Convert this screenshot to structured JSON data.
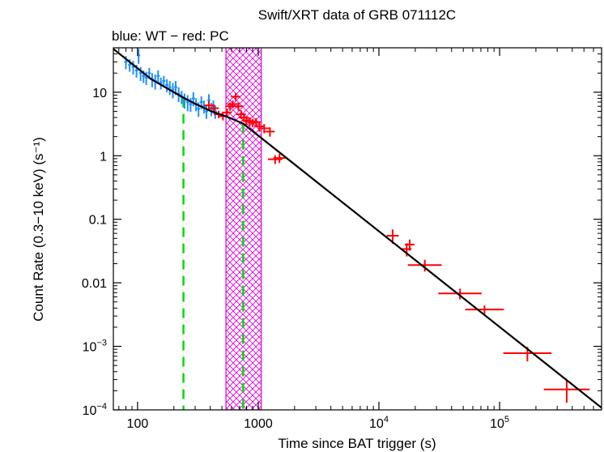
{
  "chart_data": {
    "type": "scatter",
    "title": "Swift/XRT data of GRB 071112C",
    "subtitle": "blue: WT − red: PC",
    "xlabel": "Time since BAT trigger (s)",
    "ylabel": "Count Rate (0.3−10 keV) (s⁻¹)",
    "xscale": "log",
    "yscale": "log",
    "xlim": [
      63,
      700000
    ],
    "ylim": [
      0.0001,
      50
    ],
    "x_ticks": [
      {
        "value": 100,
        "label": "100"
      },
      {
        "value": 1000,
        "label": "1000"
      },
      {
        "value": 10000,
        "base": "10",
        "exp": "4"
      },
      {
        "value": 100000,
        "base": "10",
        "exp": "5"
      }
    ],
    "y_ticks": [
      {
        "value": 0.0001,
        "base": "10",
        "exp": "−4"
      },
      {
        "value": 0.001,
        "base": "10",
        "exp": "−3"
      },
      {
        "value": 0.01,
        "label": "0.01"
      },
      {
        "value": 0.1,
        "label": "0.1"
      },
      {
        "value": 1,
        "label": "1"
      },
      {
        "value": 10,
        "label": "10"
      }
    ],
    "colors": {
      "wt": "#1f8fff",
      "pc": "#ff0000",
      "model": "#000000",
      "breaks": "#00dd00",
      "flare": "#dd00dd"
    },
    "series": [
      {
        "name": "WT",
        "color": "#1f8fff",
        "points": [
          [
            80,
            30,
            7
          ],
          [
            86,
            27,
            6
          ],
          [
            92,
            25,
            6
          ],
          [
            98,
            22,
            5
          ],
          [
            102,
            38,
            10
          ],
          [
            106,
            20,
            5
          ],
          [
            112,
            18,
            4
          ],
          [
            118,
            17,
            4
          ],
          [
            125,
            20,
            4
          ],
          [
            132,
            16,
            4
          ],
          [
            140,
            15,
            4
          ],
          [
            148,
            18,
            4
          ],
          [
            156,
            14,
            3
          ],
          [
            165,
            15,
            3
          ],
          [
            175,
            13,
            3
          ],
          [
            185,
            12,
            3
          ],
          [
            196,
            11,
            3
          ],
          [
            207,
            12,
            3
          ],
          [
            219,
            9.5,
            2.5
          ],
          [
            232,
            8.5,
            2
          ],
          [
            245,
            7.5,
            2
          ],
          [
            260,
            7,
            2
          ],
          [
            275,
            6.5,
            1.6
          ],
          [
            290,
            8,
            2
          ],
          [
            305,
            6.5,
            1.5
          ],
          [
            320,
            5.5,
            1.4
          ],
          [
            338,
            7,
            1.6
          ],
          [
            355,
            6,
            1.4
          ],
          [
            372,
            5,
            1.2
          ],
          [
            390,
            7.5,
            1.8
          ],
          [
            408,
            5.5,
            1.3
          ],
          [
            425,
            6,
            1.4
          ],
          [
            440,
            5,
            1.2
          ]
        ]
      },
      {
        "name": "PC",
        "color": "#ff0000",
        "points": [
          [
            390,
            6.2,
            1.0,
            0.04
          ],
          [
            430,
            5.6,
            0.8,
            0.04
          ],
          [
            470,
            4.5,
            0.6,
            0.04
          ],
          [
            510,
            4.2,
            0.6,
            0.04
          ],
          [
            550,
            4.8,
            0.7,
            0.04
          ],
          [
            585,
            6.0,
            0.9,
            0.04
          ],
          [
            615,
            6.5,
            0.9,
            0.04
          ],
          [
            650,
            8.5,
            1.2,
            0.04
          ],
          [
            685,
            6.0,
            0.9,
            0.04
          ],
          [
            720,
            4.5,
            0.7,
            0.04
          ],
          [
            760,
            4.0,
            0.6,
            0.04
          ],
          [
            800,
            3.6,
            0.55,
            0.04
          ],
          [
            850,
            3.5,
            0.55,
            0.04
          ],
          [
            900,
            3.3,
            0.5,
            0.04
          ],
          [
            960,
            3.4,
            0.5,
            0.04
          ],
          [
            1020,
            2.9,
            0.5,
            0.04
          ],
          [
            1120,
            2.7,
            0.45,
            0.04
          ],
          [
            1250,
            2.4,
            0.4,
            0.04
          ],
          [
            1380,
            0.88,
            0.14,
            0.06
          ],
          [
            1500,
            0.92,
            0.15,
            0.05
          ],
          [
            13000,
            0.055,
            0.014,
            0.05
          ],
          [
            17000,
            0.034,
            0.008,
            0.04
          ],
          [
            18000,
            0.04,
            0.008,
            0.04
          ],
          [
            24000,
            0.019,
            0.004,
            0.14
          ],
          [
            47000,
            0.0068,
            0.0013,
            0.18
          ],
          [
            75000,
            0.0038,
            0.0006,
            0.16
          ],
          [
            170000,
            0.00078,
            0.0002,
            0.2
          ],
          [
            360000,
            0.00021,
            8e-05,
            0.19
          ]
        ]
      }
    ],
    "model": [
      [
        63,
        48
      ],
      [
        130,
        16
      ],
      [
        240,
        8.2
      ],
      [
        300,
        6.6
      ],
      [
        400,
        5.1
      ],
      [
        570,
        4.0
      ],
      [
        750,
        3.2
      ],
      [
        700000,
        0.000108
      ]
    ],
    "break_times": [
      240,
      750
    ],
    "flare_interval": [
      540,
      1060
    ]
  }
}
